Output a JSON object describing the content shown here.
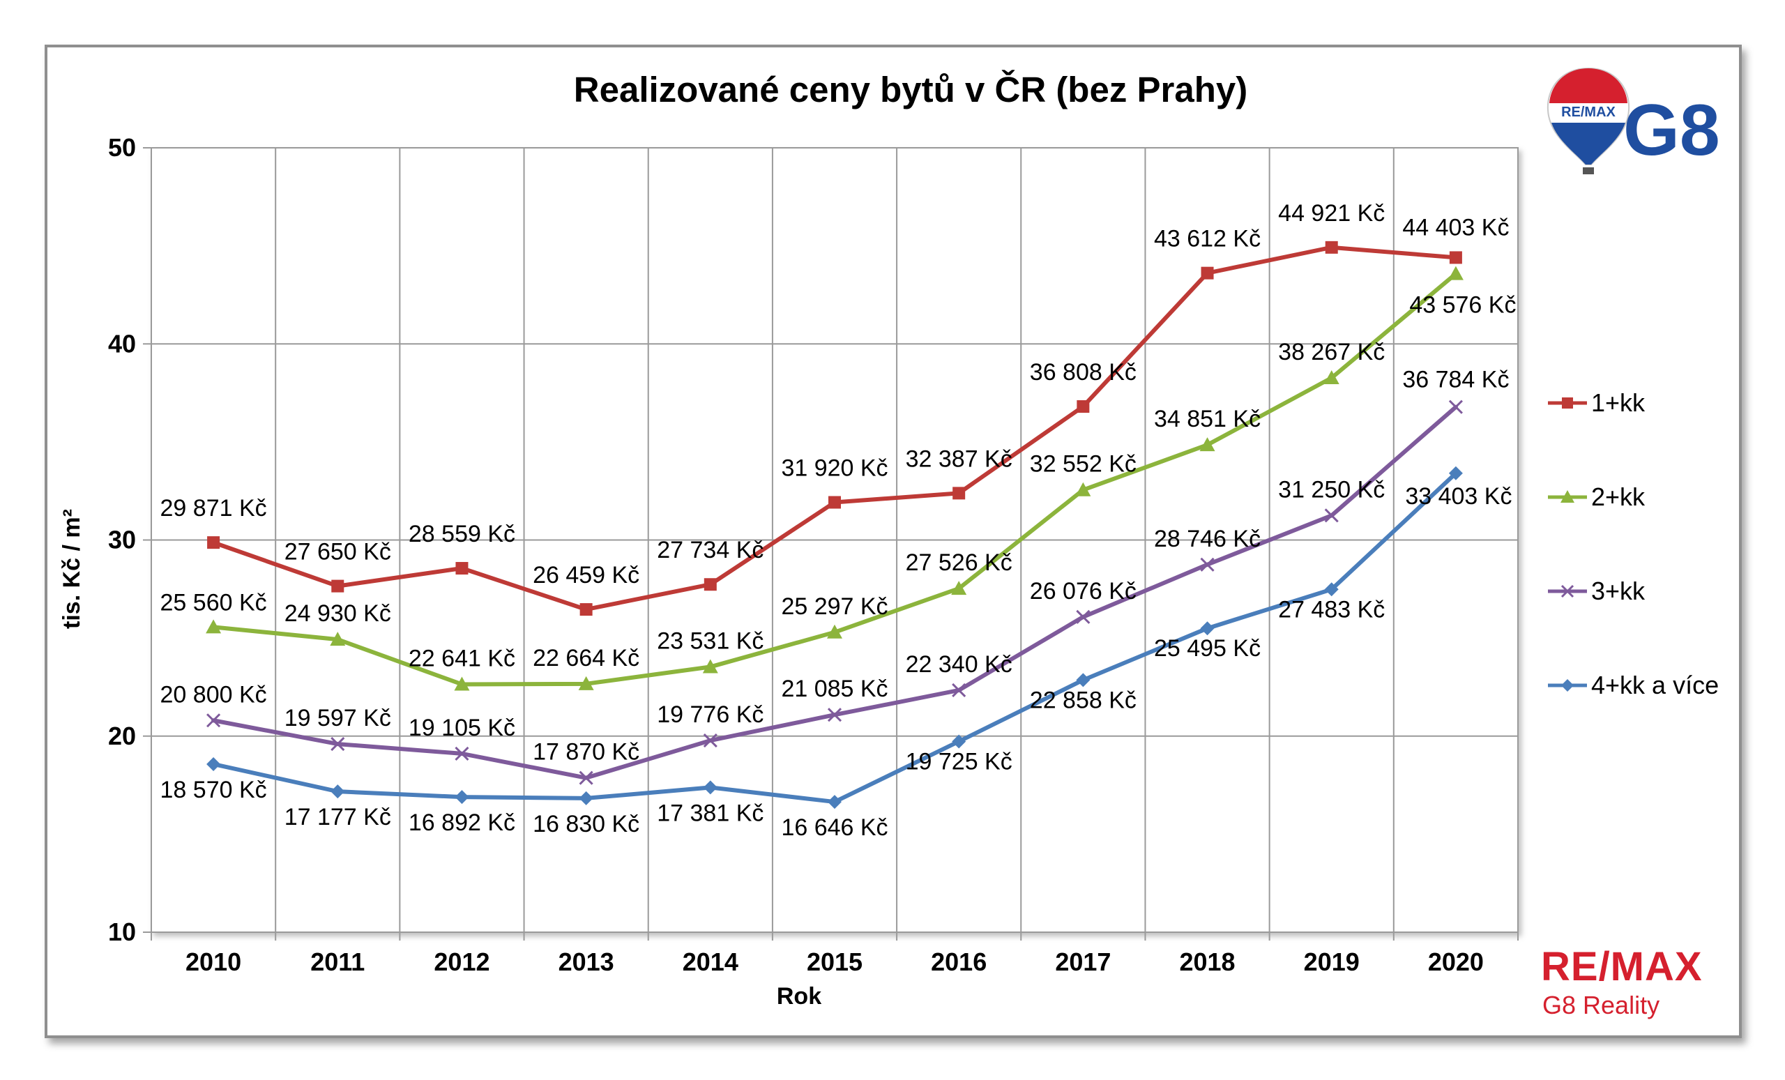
{
  "chart_data": {
    "type": "line",
    "title": "Realizované ceny bytů v ČR (bez Prahy)",
    "xlabel": "Rok",
    "ylabel": "tis. Kč / m²",
    "ylim": [
      10,
      50
    ],
    "yticks": [
      "10",
      "20",
      "30",
      "40",
      "50"
    ],
    "categories": [
      "2010",
      "2011",
      "2012",
      "2013",
      "2014",
      "2015",
      "2016",
      "2017",
      "2018",
      "2019",
      "2020"
    ],
    "grid": true,
    "legend_position": "right",
    "series": [
      {
        "name": "1+kk",
        "color": "#be3a36",
        "marker": "square",
        "values": [
          29.871,
          27.65,
          28.559,
          26.459,
          27.734,
          31.92,
          32.387,
          36.808,
          43.612,
          44.921,
          44.403
        ],
        "labels": [
          "29 871 Kč",
          "27 650 Kč",
          "28 559 Kč",
          "26 459 Kč",
          "27 734 Kč",
          "31 920 Kč",
          "32 387 Kč",
          "36 808 Kč",
          "43 612 Kč",
          "44 921 Kč",
          "44 403 Kč"
        ]
      },
      {
        "name": "2+kk",
        "color": "#8cb43c",
        "marker": "triangle",
        "values": [
          25.56,
          24.93,
          22.641,
          22.664,
          23.531,
          25.297,
          27.526,
          32.552,
          34.851,
          38.267,
          43.576
        ],
        "labels": [
          "25 560 Kč",
          "24 930 Kč",
          "22 641 Kč",
          "22 664 Kč",
          "23 531 Kč",
          "25 297 Kč",
          "27 526 Kč",
          "32 552 Kč",
          "34 851 Kč",
          "38 267 Kč",
          "43 576 Kč"
        ]
      },
      {
        "name": "3+kk",
        "color": "#7e5a9b",
        "marker": "x",
        "values": [
          20.8,
          19.597,
          19.105,
          17.87,
          19.776,
          21.085,
          22.34,
          26.076,
          28.746,
          31.25,
          36.784
        ],
        "labels": [
          "20 800 Kč",
          "19 597 Kč",
          "19 105 Kč",
          "17 870 Kč",
          "19 776 Kč",
          "21 085 Kč",
          "22 340 Kč",
          "26 076 Kč",
          "28 746 Kč",
          "31 250 Kč",
          "36 784 Kč"
        ]
      },
      {
        "name": "4+kk a více",
        "color": "#4a7ebb",
        "marker": "diamond",
        "values": [
          18.57,
          17.177,
          16.892,
          16.83,
          17.381,
          16.646,
          19.725,
          22.858,
          25.495,
          27.483,
          33.403
        ],
        "labels": [
          "18 570 Kč",
          "17 177 Kč",
          "16 892 Kč",
          "16 830 Kč",
          "17 381 Kč",
          "16 646 Kč",
          "19 725 Kč",
          "22 858 Kč",
          "25 495 Kč",
          "27 483 Kč",
          "33 403 Kč"
        ]
      }
    ]
  },
  "logo_top": {
    "balloon_text": "RE/MAX",
    "text": "G8"
  },
  "logo_bottom": {
    "brand": "RE/MAX",
    "subtitle": "G8 Reality"
  }
}
